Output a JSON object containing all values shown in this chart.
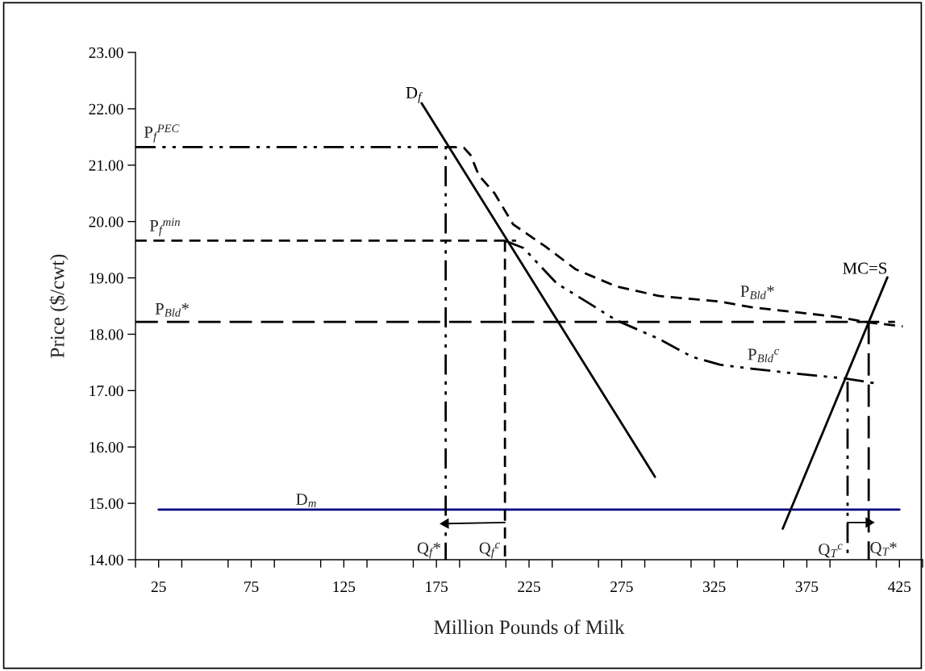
{
  "chart_data": {
    "type": "line",
    "xlabel": "Million Pounds of Milk",
    "ylabel": "Price ($/cwt)",
    "xlim": [
      12.5,
      437.5
    ],
    "ylim": [
      14,
      23
    ],
    "xticks": [
      {
        "value": 12.5,
        "label": null
      },
      {
        "value": 25,
        "label": "25"
      },
      {
        "value": 37.5,
        "label": null
      },
      {
        "value": 62.5,
        "label": null
      },
      {
        "value": 75,
        "label": "75"
      },
      {
        "value": 87.5,
        "label": null
      },
      {
        "value": 112.5,
        "label": null
      },
      {
        "value": 125,
        "label": "125"
      },
      {
        "value": 137.5,
        "label": null
      },
      {
        "value": 162.5,
        "label": null
      },
      {
        "value": 175,
        "label": "175"
      },
      {
        "value": 187.5,
        "label": null
      },
      {
        "value": 212.5,
        "label": null
      },
      {
        "value": 225,
        "label": "225"
      },
      {
        "value": 237.5,
        "label": null
      },
      {
        "value": 262.5,
        "label": null
      },
      {
        "value": 275,
        "label": "275"
      },
      {
        "value": 287.5,
        "label": null
      },
      {
        "value": 312.5,
        "label": null
      },
      {
        "value": 325,
        "label": "325"
      },
      {
        "value": 337.5,
        "label": null
      },
      {
        "value": 362.5,
        "label": null
      },
      {
        "value": 375,
        "label": "375"
      },
      {
        "value": 387.5,
        "label": null
      },
      {
        "value": 412.5,
        "label": null
      },
      {
        "value": 425,
        "label": "425"
      },
      {
        "value": 437.5,
        "label": null
      }
    ],
    "yticks": [
      {
        "value": 14,
        "label": "14.00"
      },
      {
        "value": 15,
        "label": "15.00"
      },
      {
        "value": 16,
        "label": "16.00"
      },
      {
        "value": 17,
        "label": "17.00"
      },
      {
        "value": 18,
        "label": "18.00"
      },
      {
        "value": 19,
        "label": "19.00"
      },
      {
        "value": 20,
        "label": "20.00"
      },
      {
        "value": 21,
        "label": "21.00"
      },
      {
        "value": 22,
        "label": "22.00"
      },
      {
        "value": 23,
        "label": "23.00"
      }
    ],
    "grid": false,
    "legend": false,
    "marker": "none",
    "series": [
      {
        "type": "line",
        "color": "#000080",
        "line_style": "solid",
        "x": [
          25,
          425
        ],
        "values": [
          14.89,
          14.89
        ]
      },
      {
        "type": "line",
        "name": "D$_{f}$",
        "color": "#000000",
        "line_style": "solid",
        "x": [
          167,
          293
        ],
        "values": [
          22.1,
          15.47
        ]
      },
      {
        "type": "line",
        "name": "MC=S",
        "color": "#000000",
        "line_style": "solid",
        "x": [
          418.5,
          362
        ],
        "values": [
          19.01,
          14.55
        ]
      },
      {
        "type": "line",
        "color": "#000000",
        "line_style": "dashdotdot",
        "x": [
          12.5,
          180,
          180
        ],
        "values": [
          21.32,
          21.32,
          14
        ]
      },
      {
        "type": "line",
        "color": "#000000",
        "line_style": "dashed",
        "x": [
          12.5,
          218
        ],
        "values": [
          19.66,
          19.66
        ]
      },
      {
        "type": "line",
        "color": "#000000",
        "line_style": "dashed",
        "x": [
          212,
          212
        ],
        "values": [
          19.66,
          14
        ]
      },
      {
        "type": "line",
        "color": "#000000",
        "line_style": "longdash",
        "x": [
          12.5,
          422.6
        ],
        "values": [
          18.22,
          18.22
        ]
      },
      {
        "type": "line",
        "color": "#000000",
        "line_style": "longdash",
        "x": [
          408.4,
          408.4
        ],
        "values": [
          18.22,
          14
        ]
      },
      {
        "type": "line",
        "color": "#000000",
        "line_style": "dashdotdot",
        "x": [
          397,
          397
        ],
        "values": [
          17.16,
          14
        ]
      },
      {
        "type": "line",
        "color": "#000000",
        "line_style": "dashed",
        "x": [
          180,
          184.7,
          189.8,
          193.4,
          197.9,
          206.4,
          216.4,
          233.7,
          250.3,
          272,
          295,
          315,
          328,
          345,
          369.4,
          391,
          408.4,
          426.8
        ],
        "values": [
          21.32,
          21.32,
          21.31,
          21.18,
          20.82,
          20.5,
          19.95,
          19.56,
          19.15,
          18.85,
          18.68,
          18.62,
          18.58,
          18.48,
          18.39,
          18.31,
          18.21,
          18.14
        ]
      },
      {
        "type": "line",
        "color": "#000000",
        "line_style": "dashdotdot",
        "x": [
          212,
          222,
          240,
          252,
          272,
          295,
          313,
          328,
          345,
          369.5,
          394.5,
          412
        ],
        "values": [
          19.66,
          19.53,
          18.9,
          18.66,
          18.25,
          17.92,
          17.6,
          17.46,
          17.39,
          17.3,
          17.22,
          17.13
        ]
      },
      {
        "type": "line",
        "marker": "triangle",
        "color": "#000000",
        "line_style": "solid",
        "x": [
          212,
          180
        ],
        "values": [
          14.66,
          14.64
        ]
      },
      {
        "type": "line",
        "marker": "triangle",
        "color": "#000000",
        "line_style": "solid",
        "x": [
          397,
          408.4
        ],
        "values": [
          14.66,
          14.66
        ]
      }
    ],
    "annotations": [
      {
        "text": "D$_{m}$",
        "x": 99,
        "y": 14.89
      },
      {
        "text": "P$_{f}$$^{PEC}$",
        "x": 17,
        "y": 21.38
      },
      {
        "text": "P$_{f}$$^{min}$",
        "x": 20,
        "y": 19.72
      },
      {
        "text": "P$_{Bld}$*",
        "x": 23,
        "y": 18.27
      },
      {
        "text": "P$_{Bld}$*",
        "x": 339,
        "y": 18.58
      },
      {
        "text": "P$_{Bld}$$^{c}$",
        "x": 343,
        "y": 17.46
      },
      {
        "text": "Q$_{f}$*",
        "x": 180,
        "y": 14
      },
      {
        "text": "Q$_{f}$$^{c}$",
        "x": 212,
        "y": 14
      },
      {
        "text": "Q$_{T}$*",
        "x": 409,
        "y": 14.03
      },
      {
        "text": "Q$_{T}$$^{c}$",
        "x": 397,
        "y": 14
      }
    ]
  }
}
